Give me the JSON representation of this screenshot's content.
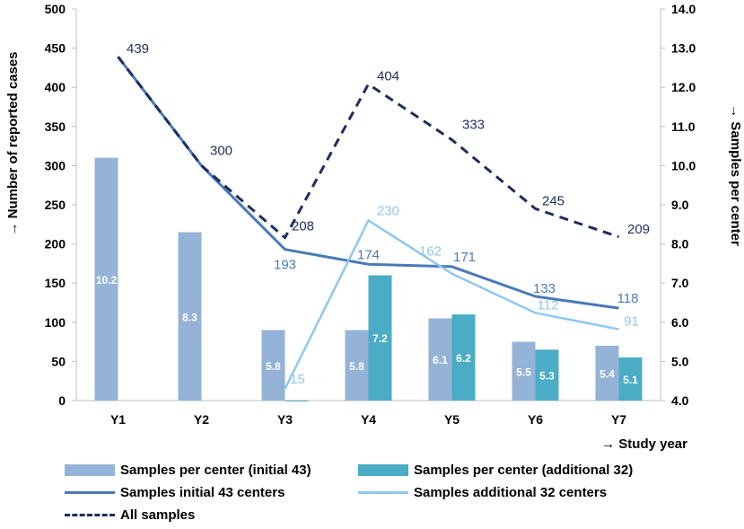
{
  "colors": {
    "bar_initial": "#95b3d7",
    "bar_additional": "#4bacc6",
    "line_initial": "#4a7ab8",
    "line_additional": "#8ec8f0",
    "line_all": "#1f2d5e"
  },
  "chart_data": {
    "type": "bar+line",
    "categories": [
      "Y1",
      "Y2",
      "Y3",
      "Y4",
      "Y5",
      "Y6",
      "Y7"
    ],
    "xlabel": "→ Study year",
    "ylabel": "→ Number of reported cases",
    "y2label": "→ Samples per center",
    "ylim": [
      0,
      500
    ],
    "y_ticks": [
      "0",
      "50",
      "100",
      "150",
      "200",
      "250",
      "300",
      "350",
      "400",
      "450",
      "500"
    ],
    "y2lim": [
      4.0,
      14.0
    ],
    "y2_ticks": [
      "4.0",
      "5.0",
      "6.0",
      "7.0",
      "8.0",
      "9.0",
      "10.0",
      "11.0",
      "12.0",
      "13.0",
      "14.0"
    ],
    "bar_series": [
      {
        "name": "Samples per center (initial 43)",
        "axis": "right",
        "values": [
          10.2,
          8.3,
          5.8,
          5.8,
          6.1,
          5.5,
          5.4
        ],
        "labels": [
          "10.2",
          "8.3",
          "5.8",
          "5.8",
          "6.1",
          "5.5",
          "5.4"
        ]
      },
      {
        "name": "Samples per center (additional 32)",
        "axis": "right",
        "values": [
          null,
          null,
          4.0,
          7.2,
          6.2,
          5.3,
          5.1
        ],
        "labels": [
          "",
          "",
          "",
          "7.2",
          "6.2",
          "5.3",
          "5.1"
        ]
      }
    ],
    "line_series": [
      {
        "name": "Samples initial 43 centers",
        "axis": "left",
        "values": [
          439,
          300,
          193,
          174,
          171,
          133,
          118
        ],
        "labels": [
          "",
          "",
          "193",
          "174",
          "171",
          "133",
          "118"
        ]
      },
      {
        "name": "Samples additional 32 centers",
        "axis": "left",
        "values": [
          null,
          null,
          15,
          230,
          162,
          112,
          91
        ],
        "labels": [
          "",
          "",
          "15",
          "230",
          "162",
          "112",
          "91"
        ]
      },
      {
        "name": "All samples",
        "axis": "left",
        "values": [
          439,
          300,
          208,
          404,
          333,
          245,
          209
        ],
        "labels": [
          "439",
          "300",
          "208",
          "404",
          "333",
          "245",
          "209"
        ]
      }
    ],
    "legend": {
      "placement": "bottom",
      "items": [
        "Samples per center (initial 43)",
        "Samples per center (additional 32)",
        "Samples initial 43 centers",
        "Samples additional 32 centers",
        "All samples"
      ]
    }
  }
}
